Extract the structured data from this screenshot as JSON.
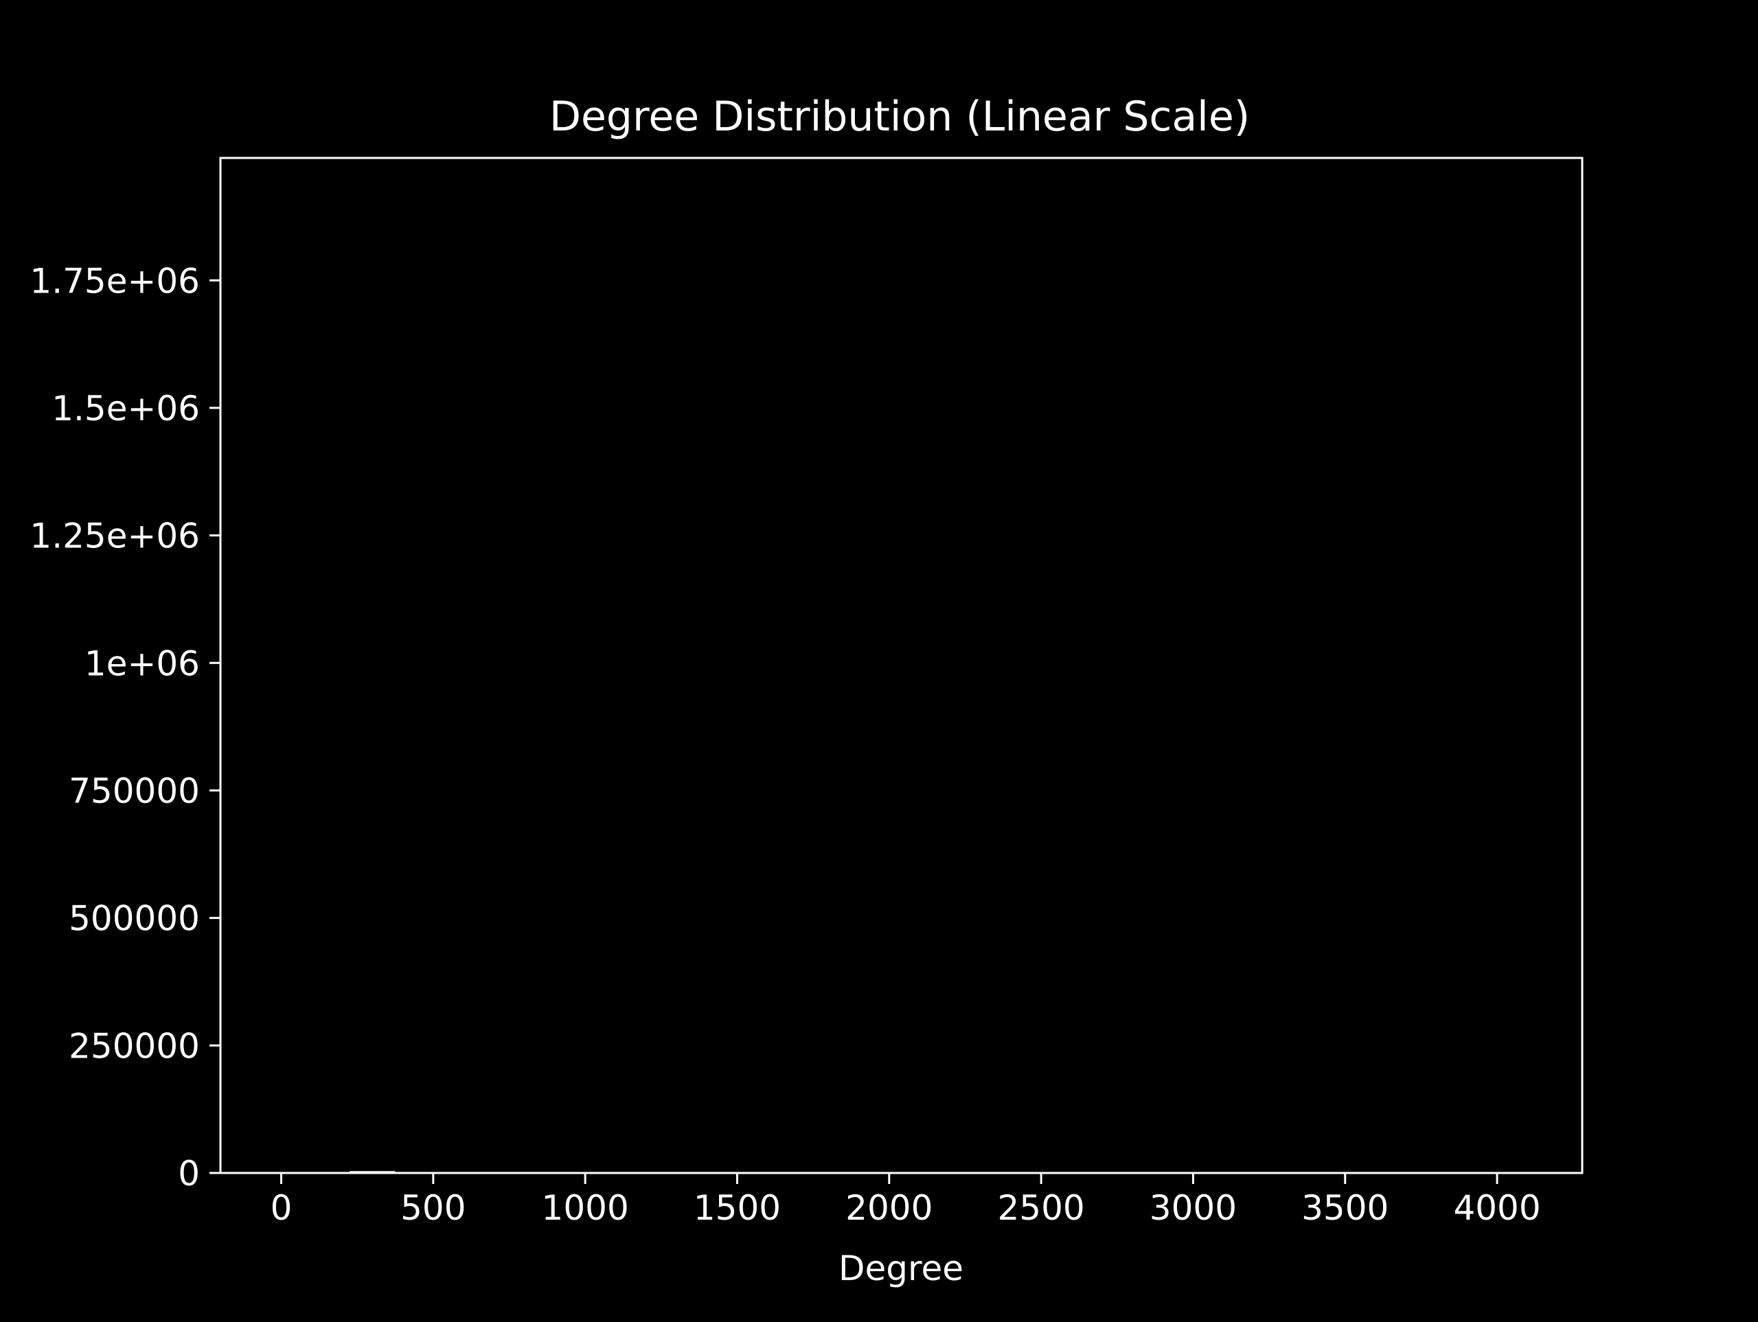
{
  "chart_data": {
    "type": "bar",
    "title": "Degree Distribution (Linear Scale)",
    "xlabel": "Degree",
    "ylabel": "",
    "xlim": [
      -200,
      4280
    ],
    "ylim": [
      0,
      1990000
    ],
    "x_ticks": [
      0,
      500,
      1000,
      1500,
      2000,
      2500,
      3000,
      3500,
      4000
    ],
    "x_tick_labels": [
      "0",
      "500",
      "1000",
      "1500",
      "2000",
      "2500",
      "3000",
      "3500",
      "4000"
    ],
    "y_ticks": [
      0,
      250000,
      500000,
      750000,
      1000000,
      1250000,
      1500000,
      1750000
    ],
    "y_tick_labels": [
      "0",
      "250000",
      "500000",
      "750000",
      "1e+06",
      "1.25e+06",
      "1.5e+06",
      "1.75e+06"
    ],
    "grid": false,
    "series": [
      {
        "x": [
          250,
          300,
          350
        ],
        "values": [
          3000,
          3000,
          3000
        ]
      }
    ],
    "colors": {
      "background": "#000000",
      "foreground": "#ffffff",
      "bar": "#c8c8c8"
    }
  }
}
